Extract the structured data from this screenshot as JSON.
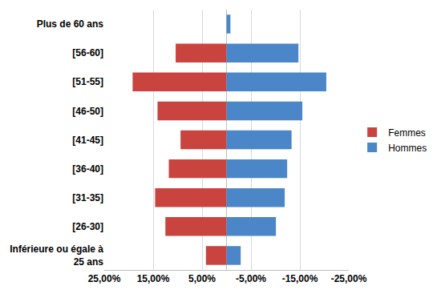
{
  "chart_data": {
    "type": "bar",
    "orientation": "horizontal",
    "stacked": true,
    "categories": [
      "Inférieure ou égale à 25 ans",
      "[26-30]",
      "[31-35]",
      "[36-40]",
      "[41-45]",
      "[46-50]",
      "[51-55]",
      "[56-60]",
      "Plus de 60 ans"
    ],
    "series": [
      {
        "name": "Femmes",
        "color": "#c9443f",
        "values": [
          4.2,
          12.5,
          14.6,
          11.8,
          9.4,
          14.1,
          19.2,
          10.4,
          0
        ]
      },
      {
        "name": "Hommes",
        "color": "#4a86c8",
        "values": [
          -2.9,
          -10.1,
          -11.9,
          -12.4,
          -13.3,
          -15.5,
          -20.4,
          -14.7,
          -0.8
        ]
      }
    ],
    "xlim": [
      25,
      -25
    ],
    "xticks": [
      {
        "value": 25,
        "label": "25,00%"
      },
      {
        "value": 15,
        "label": "15,00%"
      },
      {
        "value": 5,
        "label": "5,00%"
      },
      {
        "value": -5,
        "label": "-5,00%"
      },
      {
        "value": -15,
        "label": "-15,00%"
      },
      {
        "value": -25,
        "label": "-25,00%"
      }
    ],
    "grid": true,
    "legend": "right"
  }
}
